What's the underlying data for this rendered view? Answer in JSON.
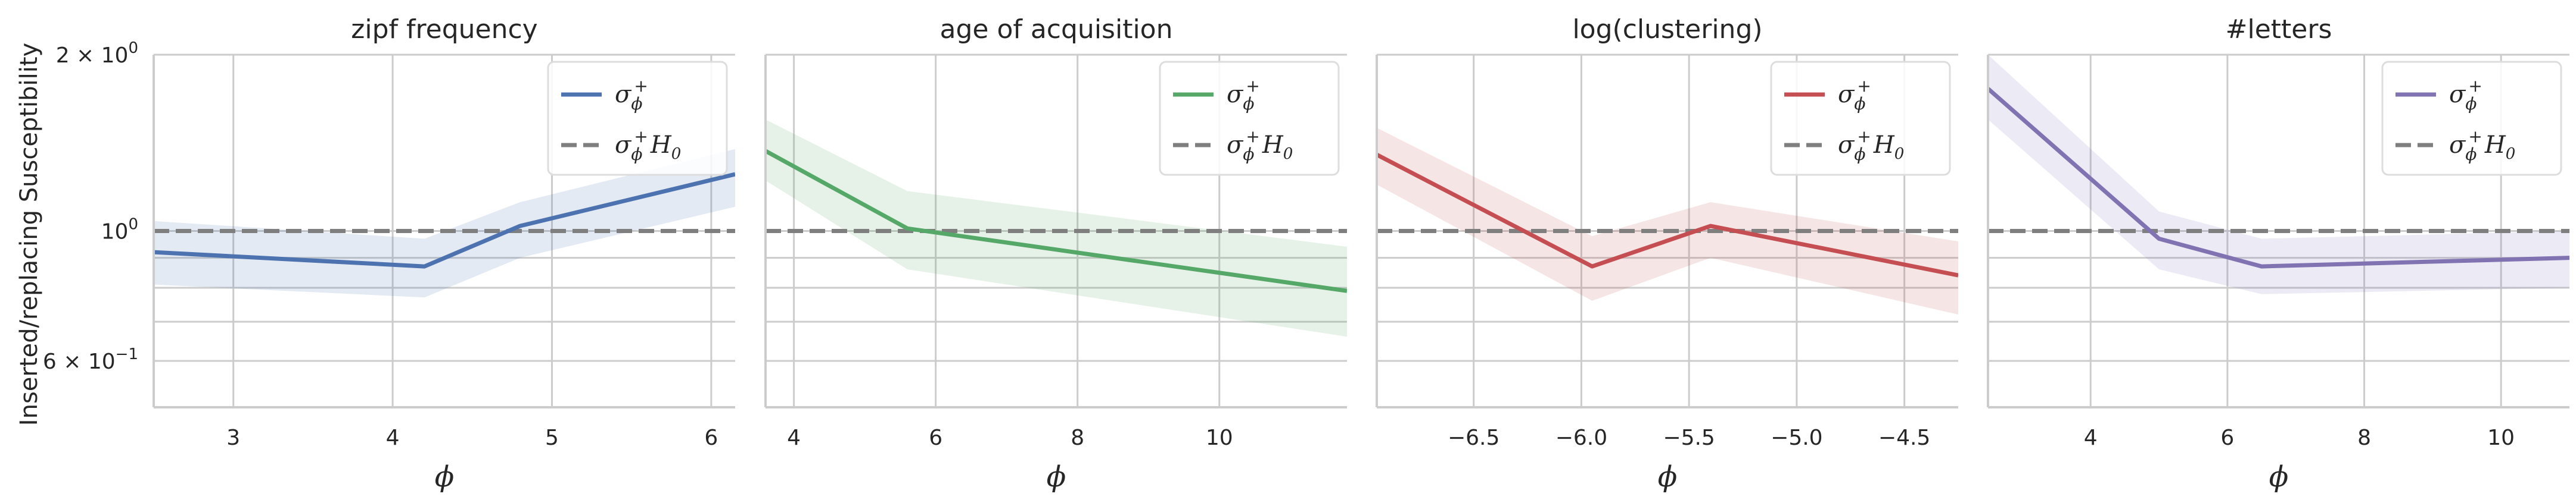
{
  "figure": {
    "ylabel": "Inserted/replacing Susceptibility",
    "y_scale": "log",
    "ylim": [
      0.5,
      2.0
    ],
    "ytick_labels": [
      {
        "value": 2.0,
        "label": "2 × 10",
        "sup": "0"
      },
      {
        "value": 1.0,
        "label": "10",
        "sup": "0"
      },
      {
        "value": 0.6,
        "label": "6 × 10",
        "sup": "−1"
      }
    ],
    "y_minor_gridlines": [
      0.7,
      0.8,
      0.9
    ],
    "grid": true,
    "legend_placement": "top-right",
    "dashed_color": "#7f7f7f"
  },
  "chart_data": [
    {
      "type": "line",
      "title": "zipf frequency",
      "xlabel": "ϕ",
      "xlim": [
        2.5,
        6.15
      ],
      "xticks": [
        3,
        4,
        5,
        6
      ],
      "xtick_labels": [
        "3",
        "4",
        "5",
        "6"
      ],
      "color": "#4c72b0",
      "series": [
        {
          "name": "σϕ+",
          "x": [
            2.5,
            4.2,
            4.8,
            6.15
          ],
          "y": [
            0.92,
            0.87,
            1.02,
            1.25
          ],
          "ci_low": [
            0.81,
            0.77,
            0.9,
            1.1
          ],
          "ci_high": [
            1.04,
            0.97,
            1.12,
            1.38
          ]
        },
        {
          "name": "σϕ+H0",
          "x": [
            2.5,
            6.15
          ],
          "y": [
            1.0,
            1.0
          ]
        }
      ]
    },
    {
      "type": "line",
      "title": "age of acquisition",
      "xlabel": "ϕ",
      "xlim": [
        3.6,
        11.8
      ],
      "xticks": [
        4,
        6,
        8,
        10
      ],
      "xtick_labels": [
        "4",
        "6",
        "8",
        "10"
      ],
      "color": "#55a868",
      "series": [
        {
          "name": "σϕ+",
          "x": [
            3.6,
            5.6,
            11.8
          ],
          "y": [
            1.37,
            1.01,
            0.79
          ],
          "ci_low": [
            1.22,
            0.86,
            0.66
          ],
          "ci_high": [
            1.55,
            1.17,
            0.94
          ]
        },
        {
          "name": "σϕ+H0",
          "x": [
            3.6,
            11.8
          ],
          "y": [
            1.0,
            1.0
          ]
        }
      ]
    },
    {
      "type": "line",
      "title": "log(clustering)",
      "xlabel": "ϕ",
      "xlim": [
        -6.95,
        -4.25
      ],
      "xticks": [
        -6.5,
        -6.0,
        -5.5,
        -5.0,
        -4.5
      ],
      "xtick_labels": [
        "−6.5",
        "−6.0",
        "−5.5",
        "−5.0",
        "−4.5"
      ],
      "color": "#c44e52",
      "series": [
        {
          "name": "σϕ+",
          "x": [
            -6.95,
            -5.95,
            -5.4,
            -4.25
          ],
          "y": [
            1.35,
            0.87,
            1.02,
            0.84
          ],
          "ci_low": [
            1.2,
            0.76,
            0.9,
            0.72
          ],
          "ci_high": [
            1.5,
            0.98,
            1.12,
            0.96
          ]
        },
        {
          "name": "σϕ+H0",
          "x": [
            -6.95,
            -4.25
          ],
          "y": [
            1.0,
            1.0
          ]
        }
      ]
    },
    {
      "type": "line",
      "title": "#letters",
      "xlabel": "ϕ",
      "xlim": [
        2.5,
        11.0
      ],
      "xticks": [
        4,
        6,
        8,
        10
      ],
      "xtick_labels": [
        "4",
        "6",
        "8",
        "10"
      ],
      "color": "#8172b2",
      "series": [
        {
          "name": "σϕ+",
          "x": [
            2.5,
            5.0,
            6.5,
            11.0
          ],
          "y": [
            1.75,
            0.97,
            0.87,
            0.9
          ],
          "ci_low": [
            1.55,
            0.86,
            0.78,
            0.8
          ],
          "ci_high": [
            2.0,
            1.08,
            0.97,
            1.0
          ]
        },
        {
          "name": "σϕ+H0",
          "x": [
            2.5,
            11.0
          ],
          "y": [
            1.0,
            1.0
          ]
        }
      ]
    }
  ]
}
